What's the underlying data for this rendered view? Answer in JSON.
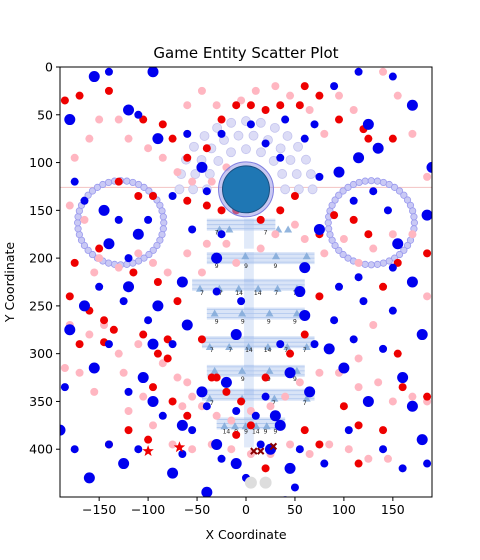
{
  "chart_data": {
    "type": "scatter",
    "title": "Game Entity Scatter Plot",
    "xlabel": "X Coordinate",
    "ylabel": "Y Coordinate",
    "xlim": [
      -190,
      190
    ],
    "ylim": [
      450,
      0
    ],
    "y_inverted": true,
    "grid": false,
    "xticks": [
      -150,
      -100,
      -50,
      0,
      50,
      100,
      150
    ],
    "yticks": [
      0,
      50,
      100,
      150,
      200,
      250,
      300,
      350,
      400
    ],
    "colors": {
      "blue": "#0000ee",
      "red": "#ee0000",
      "pink": "#ffb6c1",
      "player": "#1f77b4",
      "ring": "#9999ee",
      "lattice": "#aac4ee",
      "triangle": "#7fa8d8",
      "dark_x": "#8b0000",
      "gray": "#dddddd"
    },
    "player": {
      "x": 0,
      "y": 128,
      "r_data": 24
    },
    "rings": [
      {
        "cx": -128,
        "cy": 163,
        "r": 44
      },
      {
        "cx": 128,
        "cy": 163,
        "r": 44
      }
    ],
    "arc": {
      "cx": 0,
      "cy": 128,
      "r": 68,
      "from_deg": -180,
      "to_deg": 0
    },
    "horizontal_line_y": 126,
    "blue_large": [
      [
        -155,
        10
      ],
      [
        -95,
        5
      ],
      [
        -180,
        55
      ],
      [
        -120,
        45
      ],
      [
        -90,
        75
      ],
      [
        -45,
        105
      ],
      [
        -15,
        125
      ],
      [
        -145,
        150
      ],
      [
        -140,
        185
      ],
      [
        -110,
        175
      ],
      [
        -65,
        225
      ],
      [
        -30,
        200
      ],
      [
        -180,
        275
      ],
      [
        -165,
        250
      ],
      [
        -120,
        230
      ],
      [
        -90,
        250
      ],
      [
        -60,
        270
      ],
      [
        -95,
        290
      ],
      [
        -155,
        315
      ],
      [
        -105,
        325
      ],
      [
        -95,
        350
      ],
      [
        -65,
        375
      ],
      [
        -30,
        395
      ],
      [
        -190,
        380
      ],
      [
        -160,
        430
      ],
      [
        -125,
        415
      ],
      [
        -75,
        425
      ],
      [
        -40,
        445
      ],
      [
        -10,
        415
      ],
      [
        25,
        400
      ],
      [
        30,
        365
      ],
      [
        45,
        320
      ],
      [
        55,
        235
      ],
      [
        60,
        210
      ],
      [
        75,
        170
      ],
      [
        95,
        110
      ],
      [
        115,
        95
      ],
      [
        125,
        60
      ],
      [
        135,
        85
      ],
      [
        170,
        40
      ],
      [
        190,
        105
      ],
      [
        185,
        155
      ],
      [
        155,
        185
      ],
      [
        170,
        225
      ],
      [
        180,
        280
      ],
      [
        160,
        325
      ],
      [
        170,
        355
      ],
      [
        180,
        390
      ],
      [
        125,
        350
      ],
      [
        100,
        315
      ],
      [
        85,
        295
      ],
      [
        60,
        260
      ],
      [
        45,
        420
      ],
      [
        40,
        455
      ],
      [
        -20,
        330
      ],
      [
        -10,
        280
      ],
      [
        -45,
        340
      ],
      [
        35,
        375
      ],
      [
        65,
        340
      ]
    ],
    "blue_small": [
      [
        -140,
        5
      ],
      [
        -110,
        50
      ],
      [
        -60,
        70
      ],
      [
        -25,
        70
      ],
      [
        5,
        60
      ],
      [
        40,
        55
      ],
      [
        70,
        60
      ],
      [
        90,
        20
      ],
      [
        115,
        5
      ],
      [
        150,
        10
      ],
      [
        -175,
        120
      ],
      [
        -165,
        140
      ],
      [
        -130,
        160
      ],
      [
        -120,
        200
      ],
      [
        -100,
        160
      ],
      [
        -75,
        135
      ],
      [
        -40,
        130
      ],
      [
        -55,
        170
      ],
      [
        -25,
        175
      ],
      [
        20,
        80
      ],
      [
        35,
        95
      ],
      [
        60,
        75
      ],
      [
        75,
        115
      ],
      [
        110,
        140
      ],
      [
        130,
        130
      ],
      [
        145,
        150
      ],
      [
        150,
        210
      ],
      [
        115,
        220
      ],
      [
        95,
        230
      ],
      [
        120,
        245
      ],
      [
        90,
        265
      ],
      [
        110,
        285
      ],
      [
        140,
        295
      ],
      [
        150,
        255
      ],
      [
        -150,
        230
      ],
      [
        -125,
        245
      ],
      [
        -100,
        265
      ],
      [
        -75,
        290
      ],
      [
        -140,
        290
      ],
      [
        -120,
        340
      ],
      [
        -85,
        365
      ],
      [
        -55,
        380
      ],
      [
        -40,
        355
      ],
      [
        -10,
        360
      ],
      [
        10,
        365
      ],
      [
        20,
        345
      ],
      [
        15,
        395
      ],
      [
        55,
        400
      ],
      [
        80,
        415
      ],
      [
        105,
        380
      ],
      [
        140,
        400
      ],
      [
        160,
        420
      ],
      [
        185,
        415
      ],
      [
        -185,
        335
      ],
      [
        -175,
        400
      ],
      [
        -140,
        395
      ],
      [
        -110,
        400
      ],
      [
        -65,
        405
      ],
      [
        -25,
        410
      ],
      [
        0,
        430
      ],
      [
        50,
        440
      ],
      [
        35,
        290
      ],
      [
        70,
        290
      ],
      [
        -5,
        245
      ],
      [
        -30,
        235
      ]
    ],
    "red": [
      [
        -185,
        35
      ],
      [
        -170,
        30
      ],
      [
        -140,
        25
      ],
      [
        -105,
        55
      ],
      [
        -85,
        60
      ],
      [
        -75,
        75
      ],
      [
        -60,
        95
      ],
      [
        -40,
        85
      ],
      [
        -25,
        55
      ],
      [
        -10,
        40
      ],
      [
        5,
        40
      ],
      [
        20,
        45
      ],
      [
        35,
        40
      ],
      [
        55,
        40
      ],
      [
        60,
        20
      ],
      [
        75,
        30
      ],
      [
        95,
        55
      ],
      [
        120,
        65
      ],
      [
        125,
        75
      ],
      [
        150,
        75
      ],
      [
        -130,
        120
      ],
      [
        -110,
        135
      ],
      [
        -95,
        135
      ],
      [
        -60,
        140
      ],
      [
        -40,
        145
      ],
      [
        -25,
        150
      ],
      [
        -10,
        150
      ],
      [
        15,
        160
      ],
      [
        35,
        150
      ],
      [
        50,
        135
      ],
      [
        75,
        175
      ],
      [
        90,
        155
      ],
      [
        110,
        160
      ],
      [
        125,
        175
      ],
      [
        140,
        230
      ],
      [
        155,
        205
      ],
      [
        185,
        195
      ],
      [
        -180,
        240
      ],
      [
        -160,
        255
      ],
      [
        -145,
        265
      ],
      [
        -135,
        275
      ],
      [
        -105,
        280
      ],
      [
        -90,
        300
      ],
      [
        -80,
        285
      ],
      [
        -45,
        285
      ],
      [
        -30,
        325
      ],
      [
        -20,
        340
      ],
      [
        -5,
        350
      ],
      [
        20,
        325
      ],
      [
        45,
        300
      ],
      [
        60,
        280
      ],
      [
        75,
        240
      ],
      [
        -175,
        205
      ],
      [
        -150,
        190
      ],
      [
        -115,
        215
      ],
      [
        -90,
        225
      ],
      [
        -70,
        245
      ],
      [
        -145,
        288
      ],
      [
        -170,
        290
      ],
      [
        -120,
        380
      ],
      [
        -140,
        395
      ],
      [
        -100,
        390
      ],
      [
        -75,
        350
      ],
      [
        -60,
        365
      ],
      [
        -35,
        325
      ],
      [
        -10,
        385
      ],
      [
        5,
        375
      ],
      [
        20,
        420
      ],
      [
        60,
        380
      ],
      [
        75,
        395
      ],
      [
        100,
        355
      ],
      [
        115,
        375
      ],
      [
        140,
        380
      ],
      [
        160,
        335
      ],
      [
        185,
        345
      ],
      [
        -95,
        335
      ],
      [
        -80,
        305
      ],
      [
        115,
        415
      ],
      [
        155,
        300
      ]
    ],
    "pink": [
      [
        -175,
        95
      ],
      [
        -160,
        75
      ],
      [
        -150,
        55
      ],
      [
        -130,
        55
      ],
      [
        -120,
        75
      ],
      [
        -100,
        85
      ],
      [
        -85,
        95
      ],
      [
        -70,
        110
      ],
      [
        -55,
        120
      ],
      [
        -35,
        120
      ],
      [
        -20,
        105
      ],
      [
        -60,
        40
      ],
      [
        -45,
        25
      ],
      [
        -30,
        40
      ],
      [
        -5,
        35
      ],
      [
        10,
        25
      ],
      [
        30,
        20
      ],
      [
        45,
        30
      ],
      [
        65,
        45
      ],
      [
        80,
        70
      ],
      [
        95,
        30
      ],
      [
        110,
        45
      ],
      [
        140,
        5
      ],
      [
        155,
        30
      ],
      [
        170,
        70
      ],
      [
        185,
        115
      ],
      [
        -180,
        145
      ],
      [
        -165,
        160
      ],
      [
        -150,
        200
      ],
      [
        -155,
        215
      ],
      [
        -130,
        210
      ],
      [
        -110,
        195
      ],
      [
        -95,
        205
      ],
      [
        -80,
        215
      ],
      [
        -60,
        195
      ],
      [
        -40,
        185
      ],
      [
        -45,
        215
      ],
      [
        -20,
        185
      ],
      [
        -10,
        205
      ],
      [
        15,
        190
      ],
      [
        30,
        175
      ],
      [
        50,
        165
      ],
      [
        60,
        180
      ],
      [
        80,
        195
      ],
      [
        100,
        180
      ],
      [
        115,
        205
      ],
      [
        130,
        190
      ],
      [
        150,
        175
      ],
      [
        170,
        175
      ],
      [
        185,
        240
      ],
      [
        -180,
        270
      ],
      [
        -160,
        280
      ],
      [
        -145,
        270
      ],
      [
        -130,
        300
      ],
      [
        -110,
        290
      ],
      [
        -85,
        310
      ],
      [
        -70,
        325
      ],
      [
        -55,
        345
      ],
      [
        -45,
        355
      ],
      [
        -30,
        365
      ],
      [
        -15,
        370
      ],
      [
        5,
        360
      ],
      [
        25,
        355
      ],
      [
        40,
        345
      ],
      [
        55,
        330
      ],
      [
        75,
        320
      ],
      [
        95,
        320
      ],
      [
        115,
        335
      ],
      [
        135,
        330
      ],
      [
        150,
        350
      ],
      [
        170,
        345
      ],
      [
        185,
        350
      ],
      [
        -185,
        315
      ],
      [
        -170,
        320
      ],
      [
        -155,
        340
      ],
      [
        -120,
        360
      ],
      [
        -95,
        375
      ],
      [
        -75,
        395
      ],
      [
        -55,
        400
      ],
      [
        -35,
        395
      ],
      [
        -15,
        400
      ],
      [
        5,
        405
      ],
      [
        25,
        405
      ],
      [
        45,
        395
      ],
      [
        65,
        405
      ],
      [
        85,
        395
      ],
      [
        105,
        400
      ],
      [
        125,
        410
      ],
      [
        145,
        410
      ],
      [
        -125,
        320
      ],
      [
        -105,
        345
      ],
      [
        115,
        305
      ],
      [
        130,
        270
      ],
      [
        -60,
        330
      ],
      [
        -65,
        355
      ]
    ],
    "lattice_rows": [
      {
        "y": 165,
        "x0": -40,
        "x1": 30,
        "labels": [
          "7",
          "7"
        ],
        "tri_y": 170,
        "tri_x": [
          -27,
          -17,
          33,
          43
        ]
      },
      {
        "y": 200,
        "x0": -40,
        "x1": 70,
        "labels": [
          "9",
          "9",
          "9",
          "9"
        ],
        "tri_y": 198
      },
      {
        "y": 228,
        "x0": -55,
        "x1": 60,
        "labels": [
          "7",
          "7",
          "14",
          "14",
          "7",
          "7"
        ],
        "tri_y": 232
      },
      {
        "y": 258,
        "x0": -40,
        "x1": 60,
        "labels": [
          "9",
          "9",
          "9",
          "9"
        ],
        "tri_y": 258
      },
      {
        "y": 288,
        "x0": -45,
        "x1": 70,
        "labels": [
          "7",
          "7",
          "14",
          "14",
          "7",
          "7"
        ],
        "tri_y": 293
      },
      {
        "y": 318,
        "x0": -40,
        "x1": 60,
        "labels": [
          "9",
          "9",
          "9",
          "9"
        ],
        "tri_y": 318
      },
      {
        "y": 343,
        "x0": -45,
        "x1": 70,
        "labels": [
          "7",
          "7",
          "7",
          "7"
        ],
        "tri_y": 347
      },
      {
        "y": 373,
        "x0": -30,
        "x1": 40,
        "labels": [
          "14",
          "9",
          "9",
          "14",
          "9",
          "9"
        ],
        "tri_y": 376
      }
    ],
    "red_stars": [
      [
        -100,
        402
      ],
      [
        -68,
        398
      ]
    ],
    "x_markers": [
      [
        8,
        402
      ],
      [
        15,
        402
      ],
      [
        28,
        397
      ]
    ],
    "gray_circles": [
      [
        5,
        435
      ],
      [
        20,
        435
      ]
    ]
  }
}
